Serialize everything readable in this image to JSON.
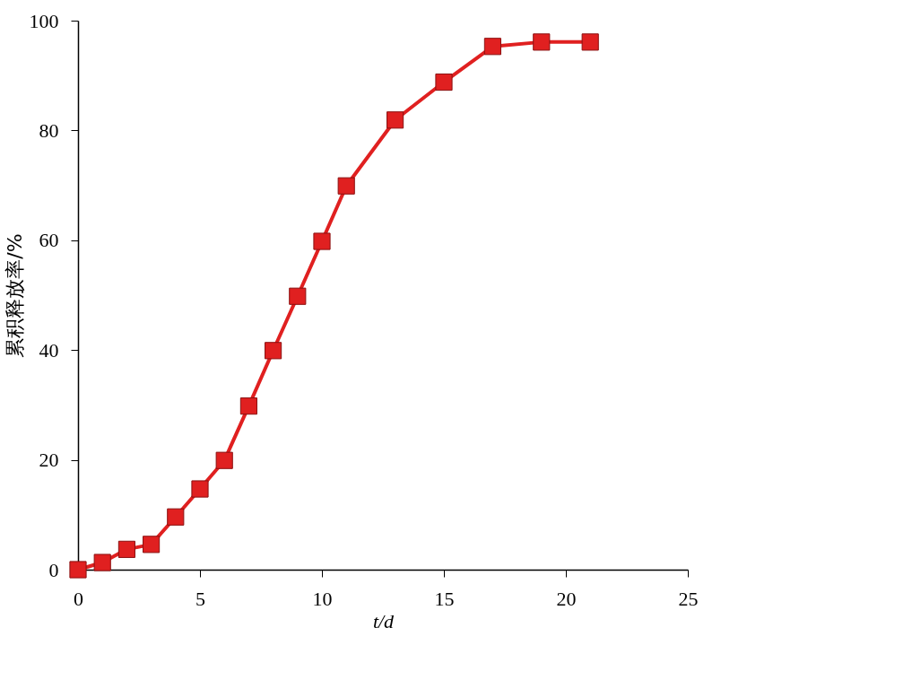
{
  "chart_data": {
    "type": "line",
    "xlabel": "t/d",
    "ylabel": "累积释放率/%",
    "x": [
      0,
      1,
      2,
      3,
      4,
      5,
      6,
      7,
      8,
      9,
      10,
      11,
      13,
      15,
      17,
      19,
      21
    ],
    "series": [
      {
        "color": "#e02020",
        "values": [
          0,
          1.3,
          3.7,
          4.6,
          9.6,
          14.7,
          19.9,
          29.8,
          39.9,
          49.8,
          59.8,
          69.9,
          81.9,
          88.8,
          95.3,
          96.1,
          96.1
        ]
      }
    ],
    "xlim": [
      0,
      25
    ],
    "xticks": [
      0,
      5,
      10,
      15,
      20,
      25
    ],
    "ylim": [
      0,
      100
    ],
    "yticks": [
      0,
      20,
      40,
      60,
      80,
      100
    ],
    "marker": "square",
    "line_style": "solid",
    "grid": false,
    "legend": false
  }
}
